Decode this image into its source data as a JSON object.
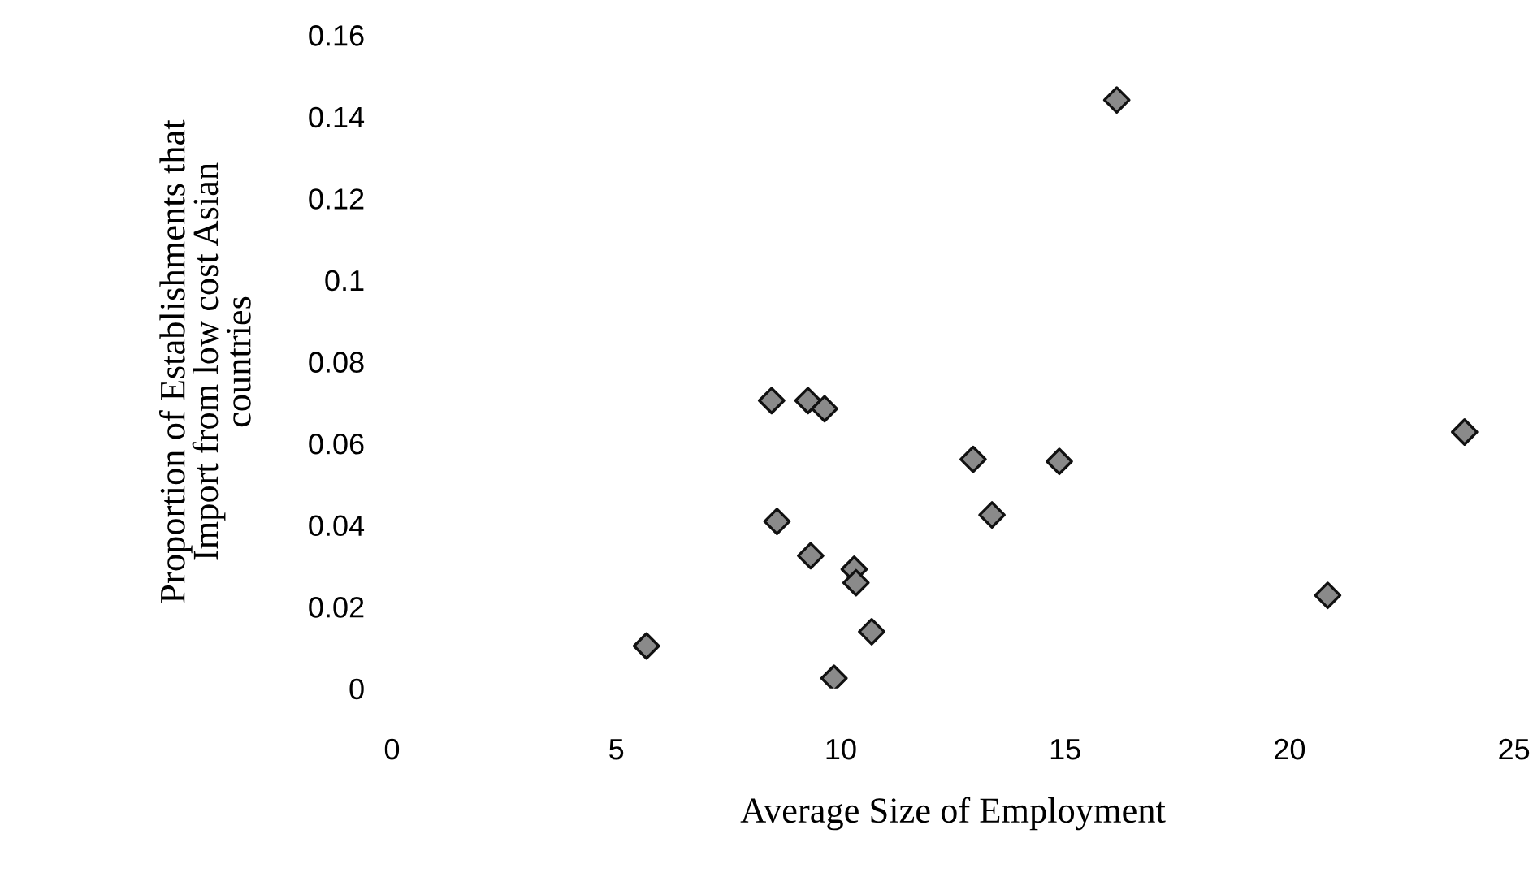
{
  "chart_data": {
    "type": "scatter",
    "xlabel": "Average Size of Employment",
    "ylabel": "Proportion of Establishments that\nImport from low cost Asian\ncountries",
    "x": [
      5.67,
      8.46,
      9.27,
      9.64,
      8.58,
      9.33,
      10.3,
      10.34,
      10.69,
      9.85,
      12.95,
      13.37,
      16.15,
      14.87,
      23.9,
      20.85
    ],
    "values": [
      0.0104,
      0.0705,
      0.0705,
      0.0685,
      0.0409,
      0.0325,
      0.0292,
      0.0259,
      0.0139,
      0.0025,
      0.0561,
      0.0425,
      0.1441,
      0.0556,
      0.0628,
      0.0228
    ],
    "color": "#8a8a8a",
    "marker": "diamond",
    "grid": false,
    "legend": false,
    "xlim": [
      0,
      25
    ],
    "xticks": [
      0,
      5,
      10,
      15,
      20,
      25
    ],
    "ylim": [
      0,
      0.16
    ],
    "yticks": [
      0,
      {
        "value": 0.02,
        "label": "0.02"
      },
      {
        "value": 0.04,
        "label": "0.04"
      },
      {
        "value": 0.06,
        "label": "0.06"
      },
      {
        "value": 0.08,
        "label": "0.08"
      },
      {
        "value": 0.1,
        "label": "0.1"
      },
      {
        "value": 0.12,
        "label": "0.12"
      },
      {
        "value": 0.14,
        "label": "0.14"
      },
      {
        "value": 0.16,
        "label": "0.16"
      }
    ]
  }
}
